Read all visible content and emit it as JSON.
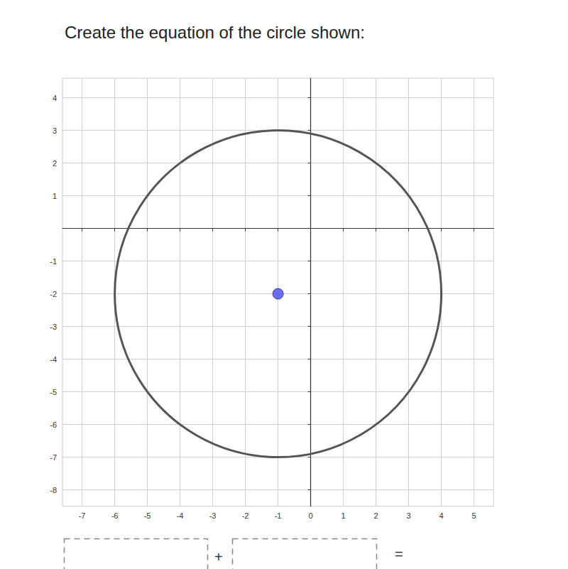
{
  "chart_data": {
    "type": "scatter",
    "title": "Create the equation of the circle shown:",
    "x": [
      -1
    ],
    "values": [
      -2
    ],
    "color": "#4a4af0",
    "marker": "circle",
    "circle": {
      "center": [
        -1,
        -2
      ],
      "radius": 5,
      "color": "#555555"
    },
    "xlim": [
      -7.6,
      5.6
    ],
    "ylim": [
      -8.5,
      4.6
    ],
    "xticks": [
      -7,
      -6,
      -5,
      -4,
      -3,
      -2,
      -1,
      0,
      1,
      2,
      3,
      4,
      5
    ],
    "yticks": [
      -8,
      -7,
      -6,
      -5,
      -4,
      -3,
      -2,
      -1,
      1,
      2,
      3,
      4
    ],
    "grid": true,
    "annotations": [
      "+",
      "="
    ]
  }
}
